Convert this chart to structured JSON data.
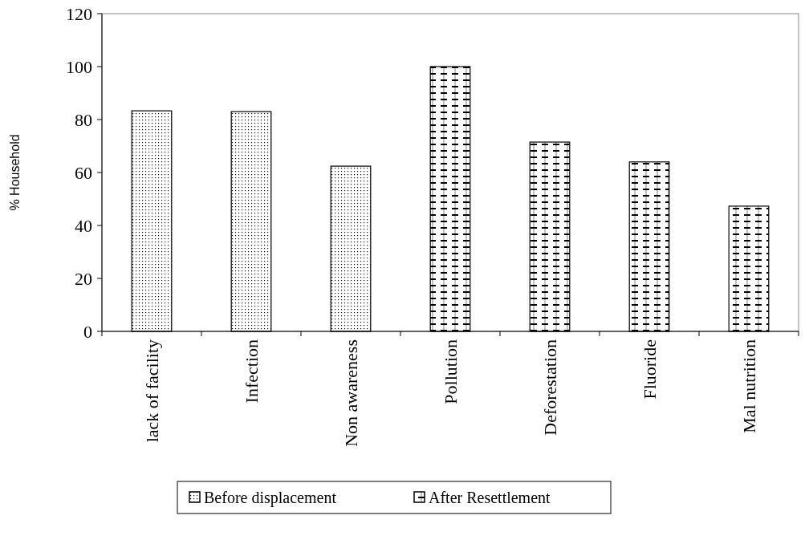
{
  "chart_data": {
    "type": "bar",
    "ylabel": "% Household",
    "categories": [
      "lack of facility",
      "Infection",
      "Non awareness",
      "Pollution",
      "Deforestation",
      "Fluoride",
      "Mal nutrition"
    ],
    "series": [
      {
        "name": "Before displacement",
        "color": "#000000",
        "values": [
          83.3,
          83,
          62.4,
          null,
          null,
          null,
          null
        ]
      },
      {
        "name": "After Resettlement",
        "color": "#000000",
        "values": [
          null,
          null,
          null,
          100,
          71.5,
          64,
          47.3
        ]
      }
    ],
    "ylim": [
      0,
      120
    ],
    "yticks": [
      0,
      20,
      40,
      60,
      80,
      100,
      120
    ],
    "grid": false,
    "legend": "bottom"
  }
}
